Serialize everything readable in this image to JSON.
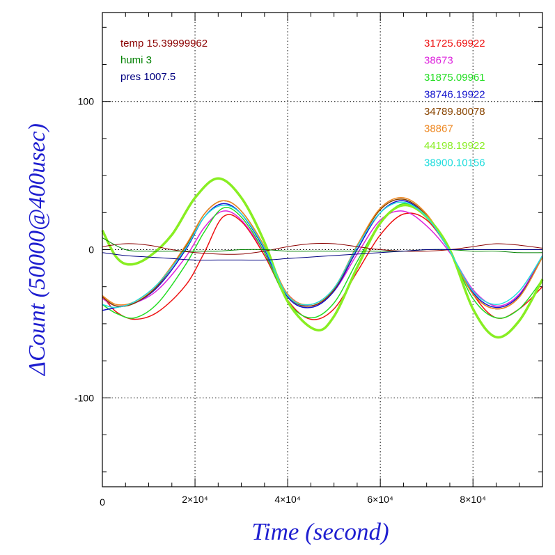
{
  "chart_data": {
    "type": "line",
    "title": "",
    "xlabel": "Time (second)",
    "ylabel": "ΔCount (50000@400usec)",
    "xlim": [
      0,
      95000
    ],
    "ylim": [
      -160,
      160
    ],
    "grid": true,
    "x_ticks": [
      {
        "value": 0,
        "label": "0"
      },
      {
        "value": 20000,
        "label": "2×10⁴"
      },
      {
        "value": 40000,
        "label": "4×10⁴"
      },
      {
        "value": 60000,
        "label": "6×10⁴"
      },
      {
        "value": 80000,
        "label": "8×10⁴"
      }
    ],
    "y_ticks": [
      {
        "value": 100,
        "label": "100"
      },
      {
        "value": 0,
        "label": "0"
      },
      {
        "value": -100,
        "label": "-100"
      }
    ],
    "env_legend": [
      {
        "label": "temp 15.39999962",
        "color": "#8b0000"
      },
      {
        "label": "humi 3",
        "color": "#008000"
      },
      {
        "label": "pres 1007.5",
        "color": "#000080"
      }
    ],
    "series": [
      {
        "name": "31725.69922",
        "color": "#ee1111",
        "width": 1.5,
        "x": [
          0,
          3000,
          7000,
          12000,
          18000,
          22000,
          26000,
          30000,
          35000,
          40000,
          45000,
          50000,
          55000,
          60000,
          65000,
          70000,
          75000,
          80000,
          85000,
          90000,
          95000
        ],
        "y": [
          -31,
          -42,
          -47,
          -42,
          -24,
          -2,
          22,
          19,
          -4,
          -34,
          -47,
          -40,
          -15,
          10,
          24,
          20,
          -1,
          -30,
          -46,
          -40,
          -25
        ]
      },
      {
        "name": "38673",
        "color": "#dd22dd",
        "width": 1.5,
        "x": [
          0,
          3000,
          7000,
          12000,
          18000,
          22000,
          26000,
          30000,
          35000,
          40000,
          45000,
          50000,
          55000,
          60000,
          65000,
          70000,
          75000,
          80000,
          85000,
          90000,
          95000
        ],
        "y": [
          -33,
          -38,
          -36,
          -27,
          -5,
          15,
          26,
          20,
          -2,
          -30,
          -38,
          -28,
          -3,
          20,
          26,
          16,
          -2,
          -27,
          -38,
          -30,
          -4
        ]
      },
      {
        "name": "31875.09961",
        "color": "#22dd22",
        "width": 1.5,
        "x": [
          0,
          3000,
          7000,
          12000,
          18000,
          22000,
          26000,
          30000,
          35000,
          40000,
          45000,
          50000,
          55000,
          60000,
          65000,
          70000,
          75000,
          80000,
          85000,
          90000,
          95000
        ],
        "y": [
          -37,
          -43,
          -46,
          -36,
          -10,
          12,
          28,
          22,
          -2,
          -35,
          -46,
          -36,
          -8,
          18,
          31,
          22,
          -1,
          -33,
          -46,
          -40,
          -20
        ]
      },
      {
        "name": "38746.19922",
        "color": "#1111cc",
        "width": 1.5,
        "x": [
          0,
          3000,
          7000,
          12000,
          18000,
          22000,
          26000,
          30000,
          35000,
          40000,
          45000,
          50000,
          55000,
          60000,
          65000,
          70000,
          75000,
          80000,
          85000,
          90000,
          95000
        ],
        "y": [
          -41,
          -39,
          -36,
          -25,
          0,
          22,
          31,
          24,
          0,
          -32,
          -39,
          -28,
          0,
          25,
          33,
          22,
          -1,
          -29,
          -39,
          -31,
          -5
        ]
      },
      {
        "name": "34789.80078",
        "color": "#884400",
        "width": 1.5,
        "x": [
          0,
          3000,
          7000,
          12000,
          18000,
          22000,
          26000,
          30000,
          35000,
          40000,
          45000,
          50000,
          55000,
          60000,
          65000,
          70000,
          75000,
          80000,
          85000,
          90000,
          95000
        ],
        "y": [
          -32,
          -38,
          -36,
          -24,
          2,
          24,
          33,
          26,
          2,
          -31,
          -38,
          -27,
          2,
          27,
          34,
          23,
          -1,
          -30,
          -40,
          -32,
          -5
        ]
      },
      {
        "name": "38867",
        "color": "#ee8822",
        "width": 1.5,
        "x": [
          0,
          3000,
          7000,
          12000,
          18000,
          22000,
          26000,
          30000,
          35000,
          40000,
          45000,
          50000,
          55000,
          60000,
          65000,
          70000,
          75000,
          80000,
          85000,
          90000,
          95000
        ],
        "y": [
          -31,
          -37,
          -35,
          -23,
          3,
          24,
          33,
          26,
          2,
          -30,
          -37,
          -26,
          3,
          28,
          35,
          24,
          -1,
          -30,
          -40,
          -32,
          -5
        ]
      },
      {
        "name": "44198.19922",
        "color": "#88ee22",
        "width": 3.5,
        "x": [
          0,
          3000,
          6000,
          10000,
          15000,
          20000,
          25000,
          30000,
          35000,
          40000,
          46000,
          50000,
          55000,
          60000,
          65000,
          70000,
          75000,
          80000,
          85000,
          90000,
          95000
        ],
        "y": [
          13,
          -5,
          -10,
          -5,
          10,
          35,
          48,
          35,
          5,
          -35,
          -54,
          -45,
          -12,
          18,
          30,
          22,
          0,
          -40,
          -59,
          -48,
          -20
        ]
      },
      {
        "name": "38900.10156",
        "color": "#22dddd",
        "width": 1.5,
        "x": [
          0,
          3000,
          7000,
          12000,
          18000,
          22000,
          26000,
          30000,
          35000,
          40000,
          45000,
          50000,
          55000,
          60000,
          65000,
          70000,
          75000,
          80000,
          85000,
          90000,
          95000
        ],
        "y": [
          -37,
          -39,
          -35,
          -23,
          1,
          22,
          30,
          24,
          1,
          -31,
          -37,
          -26,
          2,
          25,
          32,
          22,
          -1,
          -28,
          -37,
          -28,
          -4
        ]
      },
      {
        "name": "temp",
        "color": "#8b0000",
        "width": 1,
        "x": [
          0,
          5000,
          10000,
          15000,
          20000,
          25000,
          30000,
          35000,
          40000,
          45000,
          50000,
          55000,
          60000,
          65000,
          70000,
          75000,
          80000,
          85000,
          90000,
          95000
        ],
        "y": [
          2,
          4,
          3,
          0,
          -2,
          -3,
          -3,
          -1,
          2,
          4,
          4,
          2,
          0,
          -1,
          -1,
          0,
          2,
          4,
          3,
          1
        ]
      },
      {
        "name": "humi",
        "color": "#008000",
        "width": 1,
        "x": [
          0,
          5000,
          10000,
          15000,
          20000,
          25000,
          30000,
          35000,
          40000,
          45000,
          50000,
          55000,
          60000,
          65000,
          70000,
          75000,
          80000,
          85000,
          90000,
          95000
        ],
        "y": [
          8,
          0,
          -1,
          -1,
          -1,
          -1,
          0,
          0,
          -1,
          -1,
          -1,
          -1,
          -1,
          -1,
          0,
          0,
          -1,
          -1,
          -2,
          -2
        ]
      },
      {
        "name": "pres",
        "color": "#000080",
        "width": 1,
        "x": [
          0,
          5000,
          10000,
          15000,
          20000,
          25000,
          30000,
          35000,
          40000,
          45000,
          50000,
          55000,
          60000,
          65000,
          70000,
          75000,
          80000,
          85000,
          90000,
          95000
        ],
        "y": [
          -2,
          -4,
          -5,
          -6,
          -7,
          -7,
          -7,
          -7,
          -6,
          -5,
          -4,
          -3,
          -2,
          -1,
          0,
          0,
          0,
          0,
          0,
          0
        ]
      }
    ]
  }
}
